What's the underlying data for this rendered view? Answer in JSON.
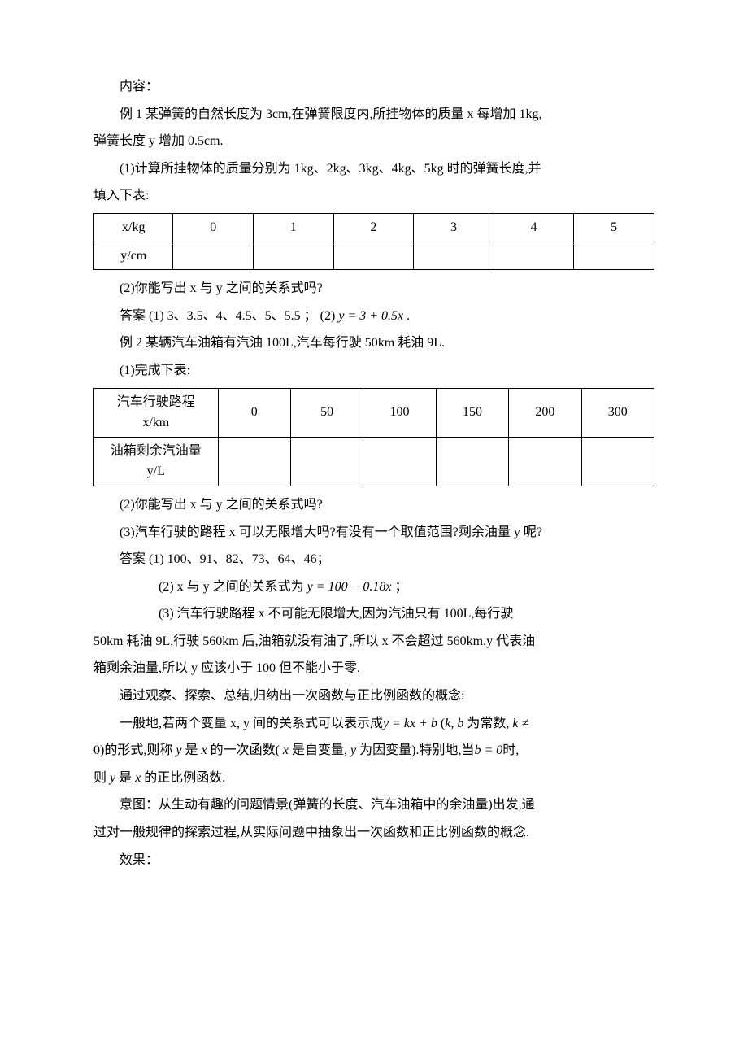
{
  "p": {
    "content_label": "内容：",
    "ex1_a": "例 1 某弹簧的自然长度为 3cm,在弹簧限度内,所挂物体的质量 x 每增加 1kg,",
    "ex1_b": "弹簧长度 y 增加 0.5cm.",
    "ex1_q1a": "(1)计算所挂物体的质量分别为 1kg、2kg、3kg、4kg、5kg 时的弹簧长度,并",
    "ex1_q1b": "填入下表:",
    "ex1_q2": "(2)你能写出 x 与 y 之间的关系式吗?",
    "ex1_ans_pre": "答案 (1) 3、3.5、4、4.5、5、5.5 ； (2) ",
    "ex1_ans_formula": "y = 3 + 0.5x",
    "dot": " .",
    "ex2_a": "例 2 某辆汽车油箱有汽油 100L,汽车每行驶 50km 耗油 9L.",
    "ex2_q1": "(1)完成下表:",
    "ex2_q2": "(2)你能写出 x 与 y 之间的关系式吗?",
    "ex2_q3": "(3)汽车行驶的路程 x 可以无限增大吗?有没有一个取值范围?剩余油量 y 呢?",
    "ex2_ans1": "答案 (1) 100、91、82、73、64、46；",
    "ex2_ans2_pre": "(2) x 与 y 之间的关系式为  ",
    "ex2_ans2_formula": "y = 100 − 0.18x",
    "semi": " ；",
    "ex2_ans3a": "(3) 汽车行驶路程 x 不可能无限增大,因为汽油只有 100L,每行驶",
    "ex2_ans3b": "50km 耗油 9L,行驶 560km 后,油箱就没有油了,所以 x 不会超过 560km.y 代表油",
    "ex2_ans3c": "箱剩余油量,所以 y 应该小于 100 但不能小于零.",
    "concept_intro": "通过观察、探索、总结,归纳出一次函数与正比例函数的概念:",
    "concept_1a": "一般地,若两个变量 x, y 间的关系式可以表示成",
    "concept_1_f1": "y = kx + b",
    "concept_1b": " (",
    "concept_1_f2": "k, b",
    "concept_1c": " 为常数,",
    "concept_1_f3": " k ≠",
    "concept_2a": "0)的形式,则称 ",
    "concept_2_y": "y",
    "concept_2b": " 是 ",
    "concept_2_x": "x",
    "concept_2c": " 的一次函数( ",
    "concept_2_x2": "x",
    "concept_2d": " 是自变量,  ",
    "concept_2_y2": "y",
    "concept_2e": " 为因变量).特别地,当",
    "concept_2_f1": "b = 0",
    "concept_2f": "时,",
    "concept_3a": "则 ",
    "concept_3_y": "y",
    "concept_3b": " 是 ",
    "concept_3_x": "x",
    "concept_3c": " 的正比例函数.",
    "intention_a": "意图：从生动有趣的问题情景(弹簧的长度、汽车油箱中的余油量)出发,通",
    "intention_b": "过对一般规律的探索过程,从实际问题中抽象出一次函数和正比例函数的概念.",
    "effect": "效果："
  },
  "table1": {
    "r1": [
      "x/kg",
      "0",
      "1",
      "2",
      "3",
      "4",
      "5"
    ],
    "r2": [
      "y/cm",
      "",
      "",
      "",
      "",
      "",
      ""
    ]
  },
  "table2": {
    "r1": [
      "汽车行驶路程\nx/km",
      "0",
      "50",
      "100",
      "150",
      "200",
      "300"
    ],
    "r2": [
      "油箱剩余汽油量\ny/L",
      "",
      "",
      "",
      "",
      "",
      ""
    ]
  }
}
